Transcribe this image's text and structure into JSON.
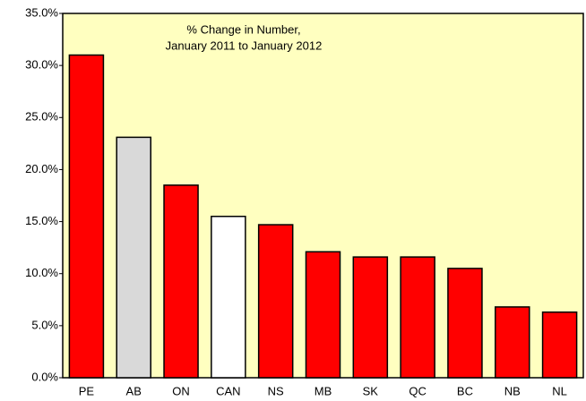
{
  "chart_data": {
    "type": "bar",
    "title": [
      "% Change in Number,",
      "January 2011 to January 2012"
    ],
    "categories": [
      "PE",
      "AB",
      "ON",
      "CAN",
      "NS",
      "MB",
      "SK",
      "QC",
      "BC",
      "NB",
      "NL"
    ],
    "values": [
      31.0,
      23.1,
      18.5,
      15.5,
      14.7,
      12.1,
      11.6,
      11.6,
      10.5,
      6.8,
      6.3
    ],
    "colors": [
      "#ff0000",
      "#d9d9d9",
      "#ff0000",
      "#ffffff",
      "#ff0000",
      "#ff0000",
      "#ff0000",
      "#ff0000",
      "#ff0000",
      "#ff0000",
      "#ff0000"
    ],
    "ylim": [
      0,
      35
    ],
    "yticks": [
      {
        "value": 0,
        "label": "0.0%"
      },
      {
        "value": 5,
        "label": "5.0%"
      },
      {
        "value": 10,
        "label": "10.0%"
      },
      {
        "value": 15,
        "label": "15.0%"
      },
      {
        "value": 20,
        "label": "20.0%"
      },
      {
        "value": 25,
        "label": "25.0%"
      },
      {
        "value": 30,
        "label": "30.0%"
      },
      {
        "value": 35,
        "label": "35.0%"
      }
    ],
    "grid": false,
    "plot_background": "#ffffc0"
  }
}
